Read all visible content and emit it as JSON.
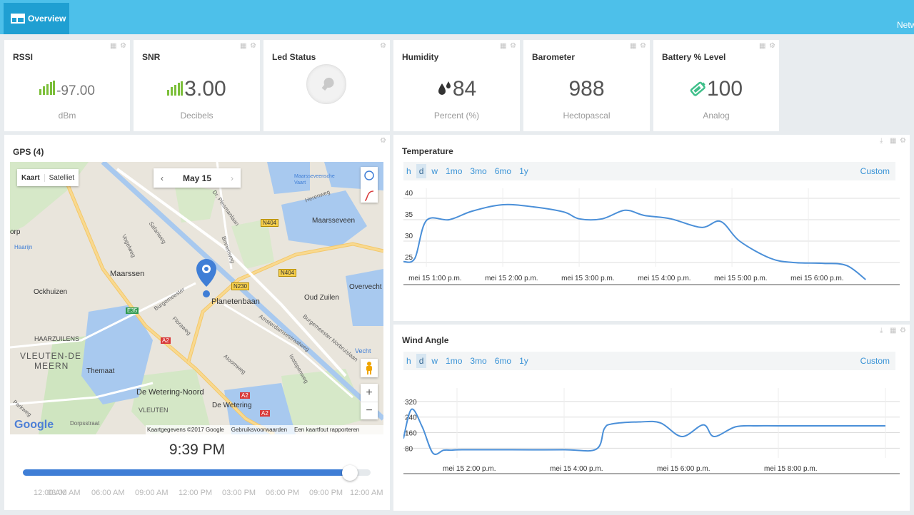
{
  "header": {
    "tab_label": "Overview",
    "right_text": "Netw"
  },
  "widgets": [
    {
      "title": "RSSI",
      "value": "-97.00",
      "unit": "dBm",
      "icon": "signal-bars-icon"
    },
    {
      "title": "SNR",
      "value": "3.00",
      "unit": "Decibels",
      "icon": "signal-bars-icon"
    },
    {
      "title": "Led Status",
      "icon": "lightbulb-icon"
    },
    {
      "title": "Humidity",
      "value": "84",
      "unit": "Percent (%)",
      "icon": "water-drops-icon"
    },
    {
      "title": "Barometer",
      "value": "988",
      "unit": "Hectopascal"
    },
    {
      "title": "Battery % Level",
      "value": "100",
      "unit": "Analog",
      "icon": "battery-tag-icon"
    }
  ],
  "colors": {
    "accent": "#4dc0ea",
    "green": "#7cbf3a",
    "line": "#4a8fd8",
    "slider": "#3f7ed6"
  },
  "gps": {
    "title": "GPS (4)",
    "map_type": [
      "Kaart",
      "Satelliet"
    ],
    "date": "May 15",
    "time": "9:39 PM",
    "slider_fraction": 0.94,
    "attribution": [
      "Kaartgegevens ©2017 Google",
      "Gebruiksvoorwaarden",
      "Een kaartfout rapporteren"
    ],
    "logo": "Google",
    "places": [
      "Maarssen",
      "Ockhuizen",
      "Maarsseveen",
      "Oud Zuilen",
      "Overvecht",
      "HAARZUILENS",
      "VLEUTEN-DE",
      "MEERN",
      "Themaat",
      "De Wetering-Noord",
      "VLEUTEN",
      "De Wetering",
      "Planetenbaan",
      "Dr. Plesmanlaan",
      "Safariweg",
      "Vogelweg",
      "Binnenweg",
      "Herenweg",
      "Burgemeester",
      "Floraweg",
      "Atoomweg",
      "Isotopenweg",
      "Amsterdamsestraatweg",
      "Burgemeester Norbruislaan",
      "Parkweg",
      "Dorpsstraat",
      "Vecht",
      "Haarijn",
      "orp",
      "Maarsseveensche Vaart"
    ],
    "road_labels": [
      "N404",
      "N404",
      "N230",
      "E35",
      "A2",
      "A2",
      "A2"
    ],
    "ticks": [
      "12:00 AM",
      "03:00 AM",
      "06:00 AM",
      "09:00 AM",
      "12:00 PM",
      "03:00 PM",
      "06:00 PM",
      "09:00 PM",
      "12:00 AM"
    ]
  },
  "temperature": {
    "title": "Temperature",
    "ranges": [
      "h",
      "d",
      "w",
      "1mo",
      "3mo",
      "6mo",
      "1y"
    ],
    "selected_range": "d",
    "custom": "Custom",
    "chart_data": {
      "type": "line",
      "title": "Temperature",
      "yticks": [
        40,
        35,
        30,
        25
      ],
      "ylim": [
        24,
        41
      ],
      "x_labels": [
        "mei 15 1:00 p.m.",
        "mei 15 2:00 p.m.",
        "mei 15 3:00 p.m.",
        "mei 15 4:00 p.m.",
        "mei 15 5:00 p.m.",
        "mei 15 6:00 p.m."
      ],
      "x_hours": [
        12.7,
        12.85,
        13.0,
        13.3,
        13.6,
        14.0,
        14.4,
        14.8,
        15.0,
        15.3,
        15.6,
        15.85,
        16.2,
        16.6,
        16.85,
        17.1,
        17.5,
        17.8,
        18.2,
        18.5,
        18.75
      ],
      "y": [
        25.2,
        26.0,
        34.8,
        35.0,
        37.0,
        38.5,
        38.0,
        36.8,
        35.2,
        35.2,
        37.2,
        36.0,
        35.2,
        33.2,
        34.6,
        30.0,
        26.0,
        25.0,
        24.8,
        24.3,
        21.0
      ]
    }
  },
  "wind": {
    "title": "Wind Angle",
    "ranges": [
      "h",
      "d",
      "w",
      "1mo",
      "3mo",
      "6mo",
      "1y"
    ],
    "selected_range": "d",
    "custom": "Custom",
    "chart_data": {
      "type": "line",
      "title": "Wind Angle",
      "yticks": [
        320,
        240,
        160,
        80
      ],
      "ylim": [
        30,
        360
      ],
      "x_labels": [
        "mei 15 2:00 p.m.",
        "mei 15 4:00 p.m.",
        "mei 15 6:00 p.m.",
        "mei 15 8:00 p.m."
      ],
      "x_hours": [
        13.0,
        13.15,
        13.35,
        13.55,
        13.75,
        13.9,
        14.1,
        15.0,
        16.0,
        16.6,
        16.75,
        16.9,
        17.4,
        17.8,
        18.2,
        18.6,
        18.8,
        19.2,
        19.6,
        20.0,
        21.0,
        22.0
      ],
      "y": [
        130,
        280,
        190,
        55,
        70,
        70,
        72,
        72,
        72,
        75,
        180,
        205,
        215,
        210,
        140,
        200,
        140,
        190,
        195,
        195,
        195,
        195
      ]
    }
  }
}
